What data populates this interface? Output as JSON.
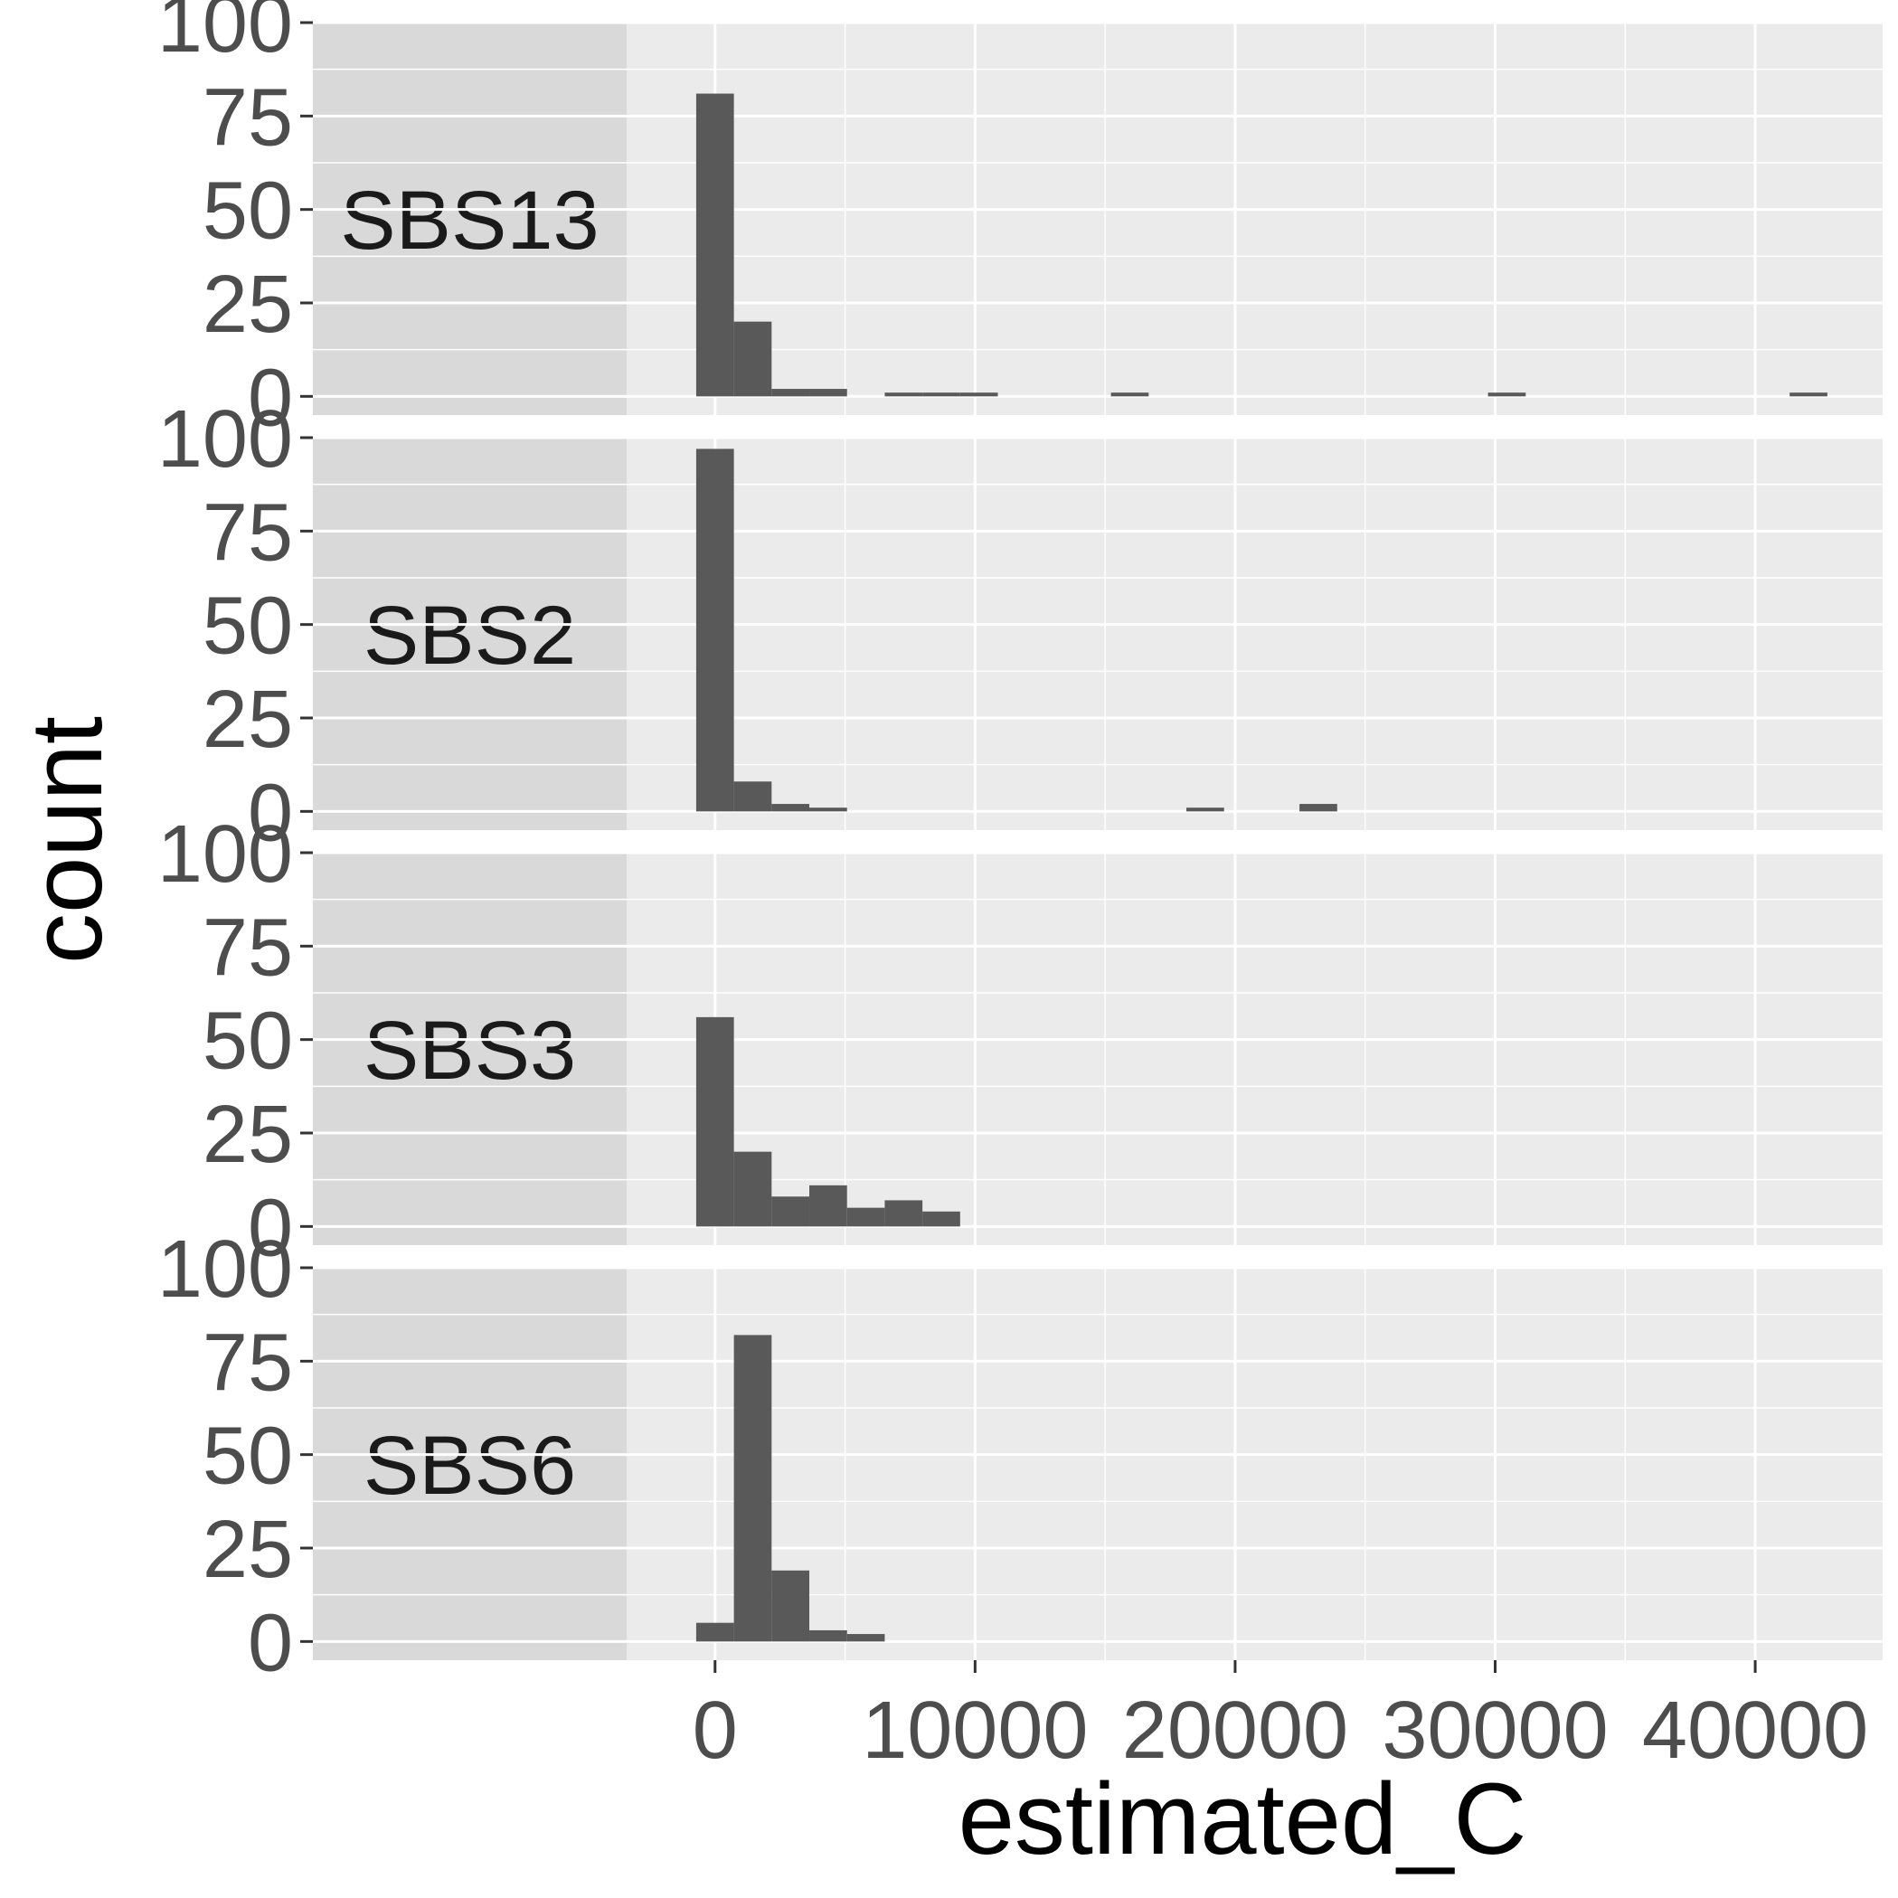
{
  "chart_data": {
    "type": "bar",
    "chart_kind": "faceted histogram",
    "xlabel": "estimated_C",
    "ylabel": "count",
    "xlim": [
      -3400,
      44900
    ],
    "ylim": [
      -5,
      100
    ],
    "x_ticks": [
      0,
      10000,
      20000,
      30000,
      40000
    ],
    "x_tick_labels": [
      "0",
      "10000",
      "20000",
      "30000",
      "40000"
    ],
    "y_ticks": [
      0,
      25,
      50,
      75,
      100
    ],
    "y_tick_labels": [
      "0",
      "25",
      "50",
      "75",
      "100"
    ],
    "bin_width": 1450,
    "grid": true,
    "colors": {
      "bar": "#595959",
      "panel_bg": "#ebebeb",
      "strip_bg": "#d9d9d9",
      "grid": "#ffffff"
    },
    "facets": [
      {
        "label": "SBS13",
        "bins": [
          {
            "x": 0,
            "count": 81
          },
          {
            "x": 1450,
            "count": 20
          },
          {
            "x": 2900,
            "count": 2
          },
          {
            "x": 4350,
            "count": 2
          },
          {
            "x": 7250,
            "count": 1
          },
          {
            "x": 8700,
            "count": 1
          },
          {
            "x": 10150,
            "count": 1
          },
          {
            "x": 15950,
            "count": 1
          },
          {
            "x": 30450,
            "count": 1
          },
          {
            "x": 42050,
            "count": 1
          }
        ]
      },
      {
        "label": "SBS2",
        "bins": [
          {
            "x": 0,
            "count": 97
          },
          {
            "x": 1450,
            "count": 8
          },
          {
            "x": 2900,
            "count": 2
          },
          {
            "x": 4350,
            "count": 1
          },
          {
            "x": 18850,
            "count": 1
          },
          {
            "x": 23200,
            "count": 2
          }
        ]
      },
      {
        "label": "SBS3",
        "bins": [
          {
            "x": 0,
            "count": 56
          },
          {
            "x": 1450,
            "count": 20
          },
          {
            "x": 2900,
            "count": 8
          },
          {
            "x": 4350,
            "count": 11
          },
          {
            "x": 5800,
            "count": 5
          },
          {
            "x": 7250,
            "count": 7
          },
          {
            "x": 8700,
            "count": 4
          }
        ]
      },
      {
        "label": "SBS6",
        "bins": [
          {
            "x": 0,
            "count": 5
          },
          {
            "x": 1450,
            "count": 82
          },
          {
            "x": 2900,
            "count": 19
          },
          {
            "x": 4350,
            "count": 3
          },
          {
            "x": 5800,
            "count": 2
          }
        ]
      }
    ]
  }
}
